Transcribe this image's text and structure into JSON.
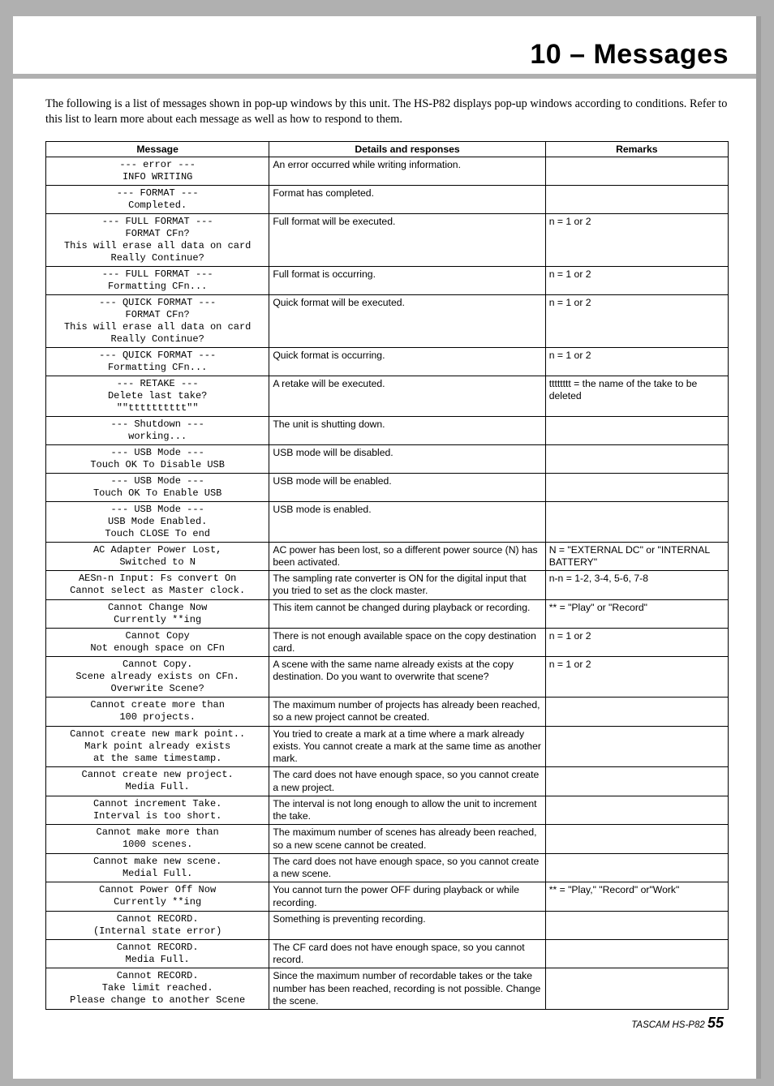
{
  "chapter_title": "10 – Messages",
  "intro": "The following is a list of messages shown in pop-up windows by this unit. The HS-P82 displays pop-up windows according to conditions. Refer to this list to learn more about each message as well as how to respond to them.",
  "headers": {
    "message": "Message",
    "details": "Details and responses",
    "remarks": "Remarks"
  },
  "rows": [
    {
      "msg": "--- error ---\nINFO WRITING",
      "det": "An error occurred while writing information.",
      "rem": ""
    },
    {
      "msg": "--- FORMAT ---\nCompleted.",
      "det": "Format has completed.",
      "rem": ""
    },
    {
      "msg": "--- FULL FORMAT ---\nFORMAT CFn?\nThis will erase all data on card\nReally Continue?",
      "det": "Full format will be executed.",
      "rem": "n = 1 or 2"
    },
    {
      "msg": "--- FULL FORMAT ---\nFormatting CFn...",
      "det": "Full format is occurring.",
      "rem": "n = 1 or 2"
    },
    {
      "msg": "--- QUICK FORMAT ---\nFORMAT CFn?\nThis will erase all data on card\nReally Continue?",
      "det": "Quick format will be executed.",
      "rem": "n = 1 or 2"
    },
    {
      "msg": "--- QUICK FORMAT ---\nFormatting CFn...",
      "det": "Quick format is occurring.",
      "rem": "n = 1 or 2"
    },
    {
      "msg": "--- RETAKE ---\nDelete last take?\n\"\"tttttttttt\"\"",
      "det": "A retake will be executed.",
      "rem": "tttttttt = the name of the take to be deleted"
    },
    {
      "msg": "--- Shutdown ---\nworking...",
      "det": "The unit is shutting down.",
      "rem": ""
    },
    {
      "msg": "--- USB Mode ---\nTouch OK To Disable USB",
      "det": "USB mode will be disabled.",
      "rem": ""
    },
    {
      "msg": "--- USB Mode ---\nTouch OK To Enable USB",
      "det": "USB mode will be enabled.",
      "rem": ""
    },
    {
      "msg": "--- USB Mode ---\nUSB Mode Enabled.\nTouch CLOSE To end",
      "det": "USB mode is enabled.",
      "rem": ""
    },
    {
      "msg": "AC Adapter Power Lost,\nSwitched to N",
      "det": "AC power has been lost, so a different power source (N) has been activated.",
      "rem": "N = \"EXTERNAL DC\" or \"INTERNAL BATTERY\""
    },
    {
      "msg": "AESn-n Input: Fs convert On\nCannot select as Master clock.",
      "det": "The sampling rate converter is ON for the digital input that you tried to set as the clock master.",
      "rem": "n-n = 1-2, 3-4, 5-6, 7-8"
    },
    {
      "msg": "Cannot Change Now\nCurrently **ing",
      "det": "This item cannot be changed during playback or recording.",
      "rem": "** = \"Play\" or \"Record\""
    },
    {
      "msg": "Cannot Copy\nNot enough space on CFn",
      "det": "There is not enough available space on the copy destination card.",
      "rem": "n = 1 or 2"
    },
    {
      "msg": "Cannot Copy.\nScene already exists on CFn.\nOverwrite Scene?",
      "det": "A scene with the same name already exists at the copy destination. Do you want to overwrite that scene?",
      "rem": "n = 1 or 2"
    },
    {
      "msg": "Cannot create more than\n100 projects.",
      "det": "The maximum number of projects has already been reached, so a new project cannot be created.",
      "rem": ""
    },
    {
      "msg": "Cannot create new mark point..\nMark point already exists\nat the same timestamp.",
      "det": "You tried to create a mark at a time where a mark already exists. You cannot create a mark at the same time as another mark.",
      "rem": ""
    },
    {
      "msg": "Cannot create new project.\nMedia Full.",
      "det": "The card does not have enough space, so you cannot create a new project.",
      "rem": ""
    },
    {
      "msg": "Cannot increment Take.\nInterval is too short.",
      "det": "The interval is not long enough to allow the unit to increment the take.",
      "rem": ""
    },
    {
      "msg": "Cannot make more than\n1000 scenes.",
      "det": "The maximum number of scenes has already been reached, so a new scene cannot be created.",
      "rem": ""
    },
    {
      "msg": "Cannot make new scene.\nMedial Full.",
      "det": "The card does not have enough space, so you cannot create a new scene.",
      "rem": ""
    },
    {
      "msg": "Cannot Power Off Now\nCurrently **ing",
      "det": "You cannot turn the power OFF during playback or while recording.",
      "rem": "** = \"Play,\" \"Record\" or\"Work\""
    },
    {
      "msg": "Cannot RECORD.\n(Internal state error)",
      "det": "Something is preventing recording.",
      "rem": ""
    },
    {
      "msg": "Cannot RECORD.\nMedia Full.",
      "det": "The CF card does not have enough space, so you cannot record.",
      "rem": ""
    },
    {
      "msg": "Cannot RECORD.\nTake limit reached.\nPlease change to another Scene",
      "det": "Since the maximum number of recordable takes or the take number has been reached, recording is not possible. Change the scene.",
      "rem": ""
    }
  ],
  "footer_model": "TASCAM  HS-P82",
  "footer_page": "55"
}
